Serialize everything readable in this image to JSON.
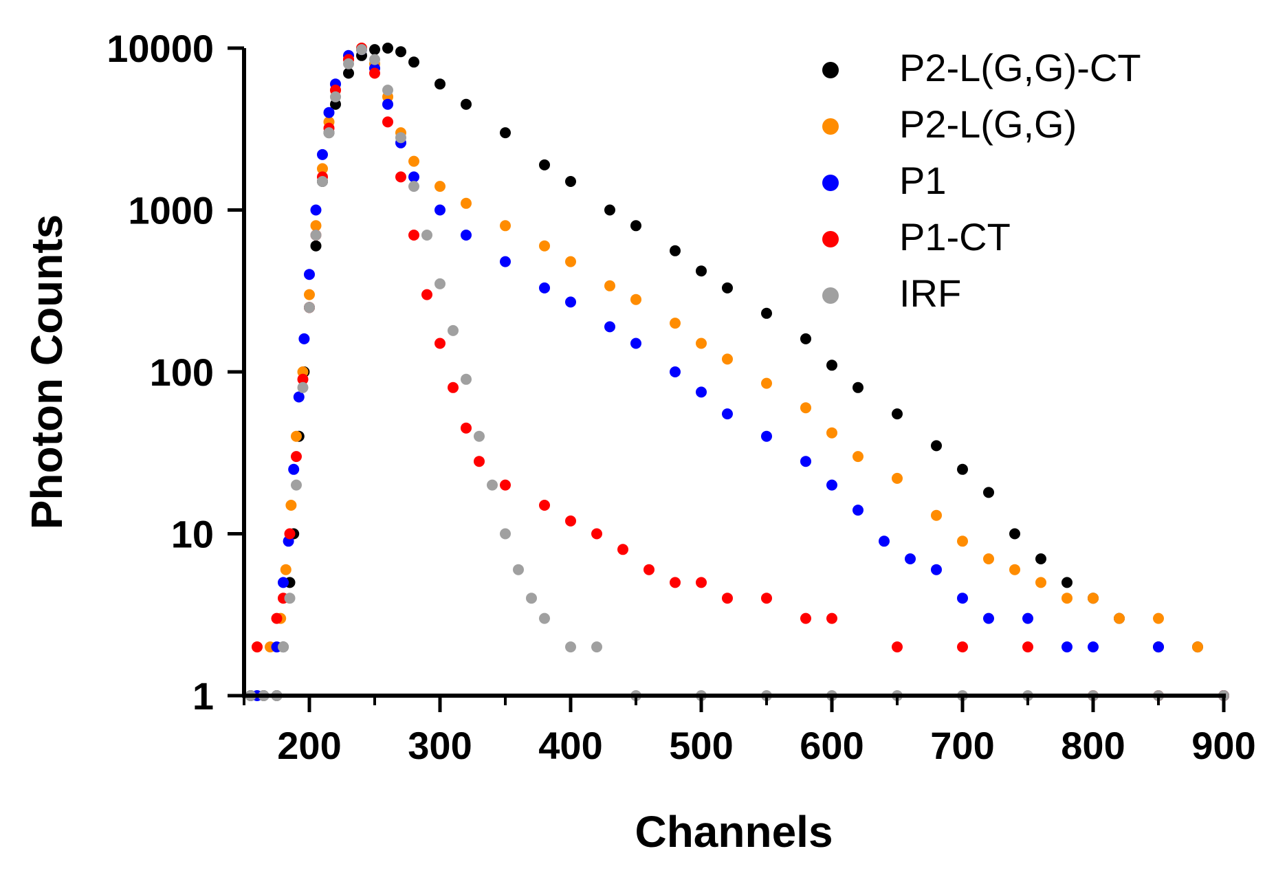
{
  "chart_data": {
    "type": "scatter",
    "title": "",
    "xlabel": "Channels",
    "ylabel": "Photon Counts",
    "xlim": [
      150,
      900
    ],
    "ylim": [
      1,
      10000
    ],
    "y_scale": "log",
    "x_ticks": [
      200,
      300,
      400,
      500,
      600,
      700,
      800,
      900
    ],
    "y_ticks": [
      1,
      10,
      100,
      1000,
      10000
    ],
    "x_tick_labels": [
      "200",
      "300",
      "400",
      "500",
      "600",
      "700",
      "800",
      "900"
    ],
    "y_tick_labels": [
      "1",
      "10",
      "100",
      "1000",
      "10000"
    ],
    "grid": false,
    "legend_position": "top-right",
    "series": [
      {
        "name": "P2-L(G,G)-CT",
        "color": "#000000",
        "points": [
          [
            155,
            1
          ],
          [
            165,
            1
          ],
          [
            175,
            1
          ],
          [
            180,
            2
          ],
          [
            185,
            5
          ],
          [
            188,
            10
          ],
          [
            192,
            40
          ],
          [
            196,
            100
          ],
          [
            200,
            250
          ],
          [
            205,
            600
          ],
          [
            210,
            1500
          ],
          [
            215,
            3000
          ],
          [
            220,
            4500
          ],
          [
            230,
            7000
          ],
          [
            240,
            9000
          ],
          [
            250,
            9800
          ],
          [
            260,
            10000
          ],
          [
            270,
            9500
          ],
          [
            280,
            8200
          ],
          [
            300,
            6000
          ],
          [
            320,
            4500
          ],
          [
            350,
            3000
          ],
          [
            380,
            1900
          ],
          [
            400,
            1500
          ],
          [
            430,
            1000
          ],
          [
            450,
            800
          ],
          [
            480,
            560
          ],
          [
            500,
            420
          ],
          [
            520,
            330
          ],
          [
            550,
            230
          ],
          [
            580,
            160
          ],
          [
            600,
            110
          ],
          [
            620,
            80
          ],
          [
            650,
            55
          ],
          [
            680,
            35
          ],
          [
            700,
            25
          ],
          [
            720,
            18
          ],
          [
            740,
            10
          ],
          [
            760,
            7
          ],
          [
            780,
            5
          ],
          [
            800,
            4
          ],
          [
            820,
            3
          ],
          [
            850,
            2
          ],
          [
            880,
            2
          ],
          [
            900,
            1
          ]
        ]
      },
      {
        "name": "P2-L(G,G)",
        "color": "#ff8c00",
        "points": [
          [
            160,
            2
          ],
          [
            170,
            2
          ],
          [
            178,
            3
          ],
          [
            182,
            6
          ],
          [
            186,
            15
          ],
          [
            190,
            40
          ],
          [
            195,
            100
          ],
          [
            200,
            300
          ],
          [
            205,
            800
          ],
          [
            210,
            1800
          ],
          [
            215,
            3500
          ],
          [
            220,
            5500
          ],
          [
            230,
            8500
          ],
          [
            240,
            10000
          ],
          [
            250,
            8000
          ],
          [
            260,
            5000
          ],
          [
            270,
            3000
          ],
          [
            280,
            2000
          ],
          [
            300,
            1400
          ],
          [
            320,
            1100
          ],
          [
            350,
            800
          ],
          [
            380,
            600
          ],
          [
            400,
            480
          ],
          [
            430,
            340
          ],
          [
            450,
            280
          ],
          [
            480,
            200
          ],
          [
            500,
            150
          ],
          [
            520,
            120
          ],
          [
            550,
            85
          ],
          [
            580,
            60
          ],
          [
            600,
            42
          ],
          [
            620,
            30
          ],
          [
            650,
            22
          ],
          [
            680,
            13
          ],
          [
            700,
            9
          ],
          [
            720,
            7
          ],
          [
            740,
            6
          ],
          [
            760,
            5
          ],
          [
            780,
            4
          ],
          [
            800,
            4
          ],
          [
            820,
            3
          ],
          [
            850,
            3
          ],
          [
            880,
            2
          ],
          [
            900,
            1
          ]
        ]
      },
      {
        "name": "P1",
        "color": "#0000ff",
        "points": [
          [
            160,
            1
          ],
          [
            175,
            2
          ],
          [
            180,
            5
          ],
          [
            184,
            9
          ],
          [
            188,
            25
          ],
          [
            192,
            70
          ],
          [
            196,
            160
          ],
          [
            200,
            400
          ],
          [
            205,
            1000
          ],
          [
            210,
            2200
          ],
          [
            215,
            4000
          ],
          [
            220,
            6000
          ],
          [
            230,
            9000
          ],
          [
            240,
            9800
          ],
          [
            250,
            7500
          ],
          [
            260,
            4500
          ],
          [
            270,
            2600
          ],
          [
            280,
            1600
          ],
          [
            300,
            1000
          ],
          [
            320,
            700
          ],
          [
            350,
            480
          ],
          [
            380,
            330
          ],
          [
            400,
            270
          ],
          [
            430,
            190
          ],
          [
            450,
            150
          ],
          [
            480,
            100
          ],
          [
            500,
            75
          ],
          [
            520,
            55
          ],
          [
            550,
            40
          ],
          [
            580,
            28
          ],
          [
            600,
            20
          ],
          [
            620,
            14
          ],
          [
            640,
            9
          ],
          [
            660,
            7
          ],
          [
            680,
            6
          ],
          [
            700,
            4
          ],
          [
            720,
            3
          ],
          [
            750,
            3
          ],
          [
            780,
            2
          ],
          [
            800,
            2
          ],
          [
            850,
            2
          ],
          [
            900,
            1
          ]
        ]
      },
      {
        "name": "P1-CT",
        "color": "#ff0000",
        "points": [
          [
            160,
            2
          ],
          [
            175,
            3
          ],
          [
            180,
            4
          ],
          [
            185,
            10
          ],
          [
            190,
            30
          ],
          [
            195,
            90
          ],
          [
            200,
            250
          ],
          [
            205,
            700
          ],
          [
            210,
            1600
          ],
          [
            215,
            3200
          ],
          [
            220,
            5500
          ],
          [
            230,
            8500
          ],
          [
            240,
            10000
          ],
          [
            250,
            7000
          ],
          [
            260,
            3500
          ],
          [
            270,
            1600
          ],
          [
            280,
            700
          ],
          [
            290,
            300
          ],
          [
            300,
            150
          ],
          [
            310,
            80
          ],
          [
            320,
            45
          ],
          [
            330,
            28
          ],
          [
            350,
            20
          ],
          [
            380,
            15
          ],
          [
            400,
            12
          ],
          [
            420,
            10
          ],
          [
            440,
            8
          ],
          [
            460,
            6
          ],
          [
            480,
            5
          ],
          [
            500,
            5
          ],
          [
            520,
            4
          ],
          [
            550,
            4
          ],
          [
            580,
            3
          ],
          [
            600,
            3
          ],
          [
            650,
            2
          ],
          [
            700,
            2
          ],
          [
            750,
            2
          ],
          [
            800,
            1
          ],
          [
            850,
            1
          ],
          [
            900,
            1
          ]
        ]
      },
      {
        "name": "IRF",
        "color": "#a0a0a0",
        "points": [
          [
            155,
            1
          ],
          [
            165,
            1
          ],
          [
            175,
            1
          ],
          [
            180,
            2
          ],
          [
            185,
            4
          ],
          [
            190,
            20
          ],
          [
            195,
            80
          ],
          [
            200,
            250
          ],
          [
            205,
            700
          ],
          [
            210,
            1500
          ],
          [
            215,
            3000
          ],
          [
            220,
            5000
          ],
          [
            230,
            8000
          ],
          [
            240,
            9800
          ],
          [
            250,
            8500
          ],
          [
            260,
            5500
          ],
          [
            270,
            2800
          ],
          [
            280,
            1400
          ],
          [
            290,
            700
          ],
          [
            300,
            350
          ],
          [
            310,
            180
          ],
          [
            320,
            90
          ],
          [
            330,
            40
          ],
          [
            340,
            20
          ],
          [
            350,
            10
          ],
          [
            360,
            6
          ],
          [
            370,
            4
          ],
          [
            380,
            3
          ],
          [
            400,
            2
          ],
          [
            420,
            2
          ],
          [
            450,
            1
          ],
          [
            500,
            1
          ],
          [
            550,
            1
          ],
          [
            600,
            1
          ],
          [
            650,
            1
          ],
          [
            700,
            1
          ],
          [
            750,
            1
          ],
          [
            800,
            1
          ],
          [
            850,
            1
          ],
          [
            900,
            1
          ]
        ]
      }
    ]
  }
}
